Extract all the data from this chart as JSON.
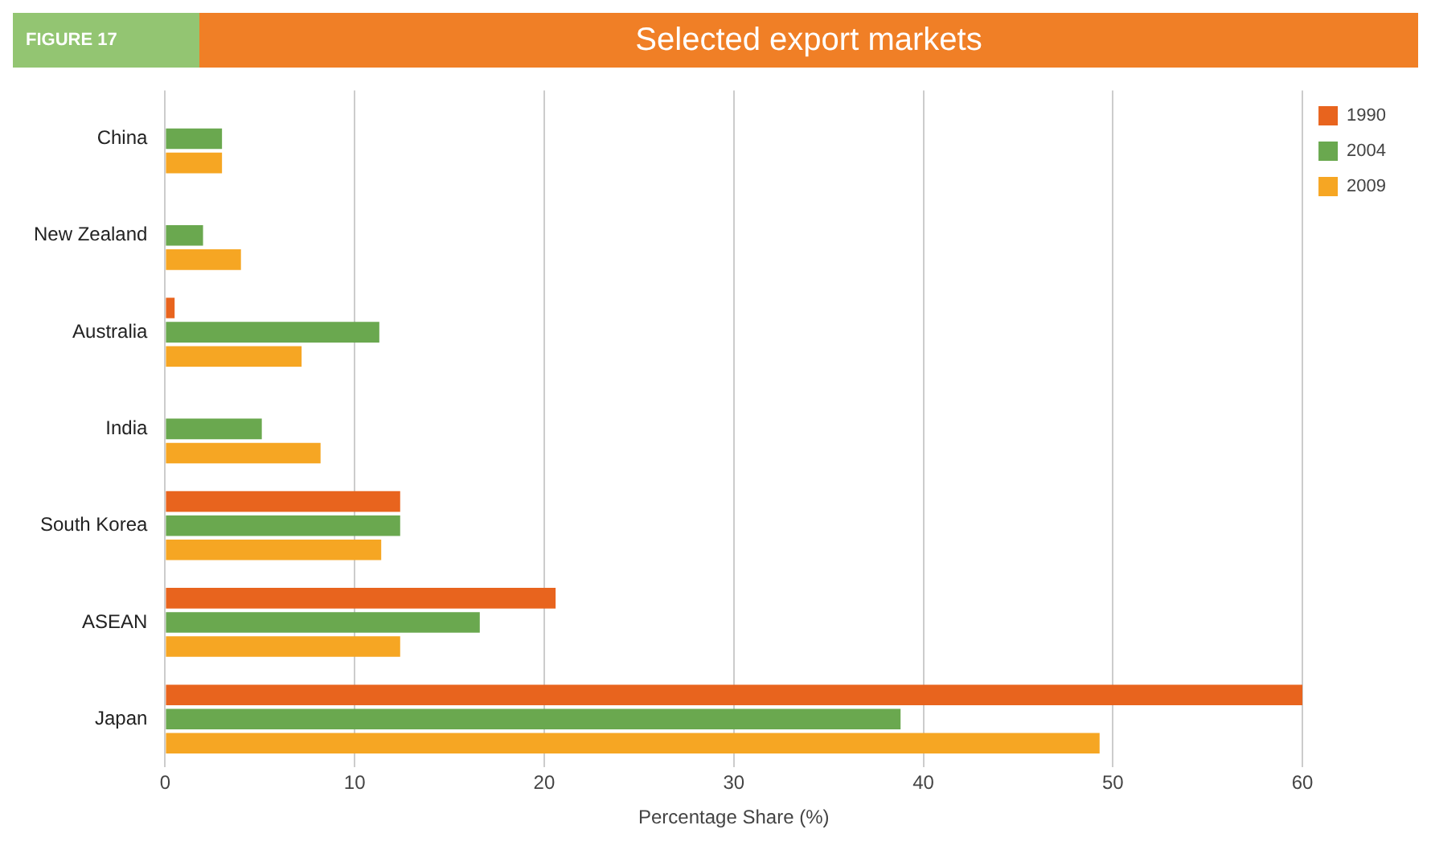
{
  "chart_data": {
    "type": "bar",
    "orientation": "horizontal",
    "title": "Selected export markets",
    "annotations": [
      "FIGURE 17"
    ],
    "xlabel": "Percentage Share (%)",
    "categories": [
      "China",
      "New Zealand",
      "Australia",
      "India",
      "South Korea",
      "ASEAN",
      "Japan"
    ],
    "series": [
      {
        "name": "1990",
        "color": "#e8641e",
        "values": [
          null,
          null,
          0.5,
          null,
          12.4,
          20.6,
          60
        ]
      },
      {
        "name": "2004",
        "color": "#6aa84f",
        "values": [
          3,
          2,
          11.3,
          5.1,
          12.4,
          16.6,
          38.8
        ]
      },
      {
        "name": "2009",
        "color": "#f6a623",
        "values": [
          3,
          4,
          7.2,
          8.2,
          11.4,
          12.4,
          49.3
        ]
      }
    ],
    "xlim": [
      0,
      60
    ],
    "xticks": [
      0,
      10,
      20,
      30,
      40,
      50,
      60
    ],
    "grid": "x",
    "legend": "top right"
  }
}
